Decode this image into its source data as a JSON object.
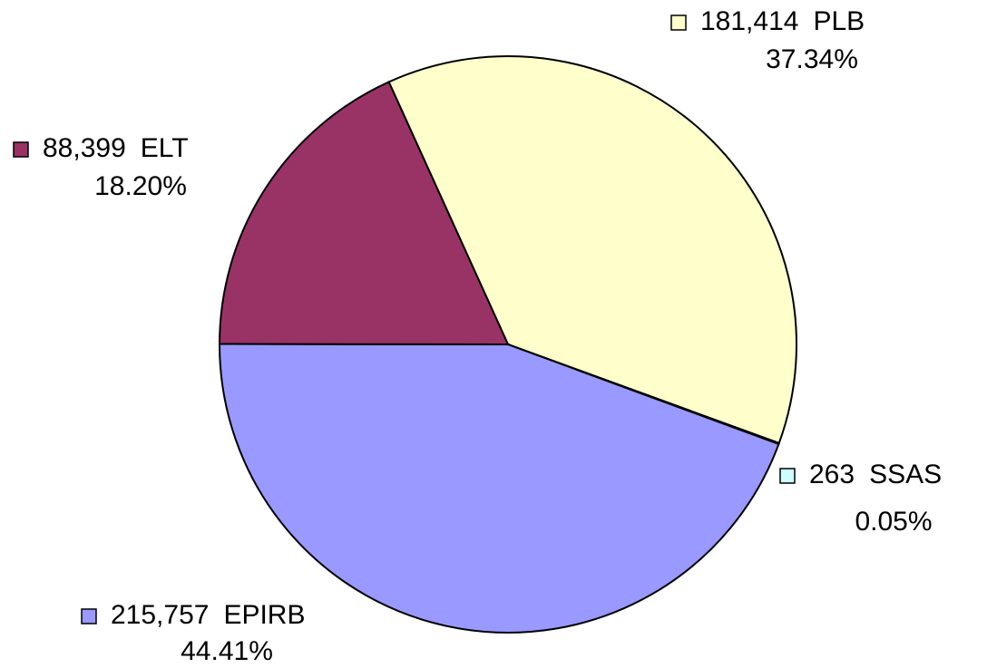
{
  "chart_data": {
    "type": "pie",
    "categories": [
      "PLB",
      "SSAS",
      "EPIRB",
      "ELT"
    ],
    "values": [
      181414,
      263,
      215757,
      88399
    ],
    "value_labels": [
      "181,414",
      "263",
      "215,757",
      "88,399"
    ],
    "percents": [
      37.34,
      0.05,
      44.41,
      18.2
    ],
    "percent_labels": [
      "37.34%",
      "0.05%",
      "44.41%",
      "18.20%"
    ],
    "colors": [
      "#ffffcc",
      "#ccffff",
      "#9999ff",
      "#993366"
    ]
  }
}
